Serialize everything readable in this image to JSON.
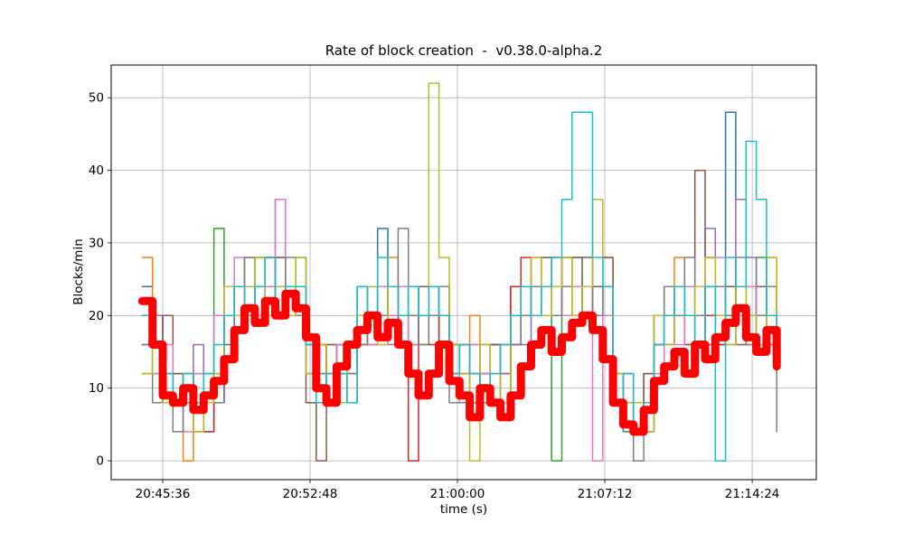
{
  "chart_data": {
    "type": "line",
    "title": "Rate of block creation  -  v0.38.0-alpha.2",
    "xlabel": "time (s)",
    "ylabel": "Blocks/min",
    "grid": true,
    "grid_color": "#b0b0b0",
    "axis_color": "#000000",
    "background_color": "#ffffff",
    "ylim": [
      -2.6,
      54.5
    ],
    "yticks": [
      0,
      10,
      20,
      30,
      40,
      50
    ],
    "xlim": [
      -151,
      1916
    ],
    "xtick_seconds": [
      0,
      432,
      864,
      1296,
      1728
    ],
    "xtick_labels": [
      "20:45:36",
      "20:52:48",
      "21:00:00",
      "21:07:12",
      "21:14:24"
    ],
    "legend": "none",
    "sample_t0": -60,
    "sample_dt": 30,
    "series": [
      {
        "name": "series-01",
        "color": "#1f77b4",
        "width": 1.5,
        "step": true,
        "values": [
          24,
          16,
          12,
          8,
          12,
          8,
          4,
          8,
          16,
          20,
          24,
          20,
          28,
          24,
          20,
          24,
          12,
          16,
          8,
          12,
          16,
          20,
          24,
          32,
          24,
          20,
          16,
          20,
          24,
          20,
          16,
          12,
          8,
          12,
          16,
          12,
          16,
          20,
          24,
          20,
          28,
          24,
          28,
          24,
          20,
          24,
          12,
          8,
          4,
          8,
          16,
          20,
          24,
          20,
          16,
          20,
          24,
          48,
          36,
          24,
          20,
          24,
          20
        ]
      },
      {
        "name": "series-02",
        "color": "#ff7f0e",
        "width": 1.5,
        "step": true,
        "values": [
          28,
          20,
          12,
          8,
          0,
          8,
          12,
          8,
          20,
          24,
          20,
          24,
          20,
          28,
          24,
          20,
          16,
          12,
          16,
          8,
          12,
          16,
          20,
          24,
          28,
          24,
          20,
          24,
          20,
          16,
          12,
          16,
          20,
          12,
          8,
          12,
          20,
          24,
          28,
          24,
          24,
          28,
          24,
          28,
          24,
          28,
          8,
          12,
          8,
          4,
          12,
          16,
          28,
          24,
          20,
          16,
          20,
          24,
          20,
          16,
          24,
          28,
          16
        ]
      },
      {
        "name": "series-03",
        "color": "#2ca02c",
        "width": 1.5,
        "step": true,
        "values": [
          16,
          12,
          8,
          12,
          8,
          12,
          8,
          32,
          24,
          20,
          24,
          28,
          24,
          20,
          24,
          28,
          12,
          8,
          12,
          16,
          12,
          24,
          20,
          24,
          20,
          24,
          20,
          16,
          20,
          24,
          12,
          8,
          12,
          16,
          12,
          16,
          24,
          20,
          24,
          28,
          0,
          20,
          24,
          20,
          24,
          20,
          8,
          4,
          8,
          12,
          20,
          24,
          20,
          16,
          20,
          24,
          16,
          20,
          24,
          20,
          28,
          24,
          20
        ]
      },
      {
        "name": "series-04",
        "color": "#d62728",
        "width": 1.5,
        "step": true,
        "values": [
          20,
          16,
          8,
          8,
          12,
          8,
          4,
          8,
          20,
          24,
          20,
          24,
          28,
          20,
          24,
          20,
          12,
          16,
          12,
          8,
          16,
          20,
          16,
          20,
          24,
          20,
          0,
          20,
          16,
          20,
          12,
          16,
          12,
          8,
          16,
          12,
          24,
          28,
          20,
          24,
          20,
          28,
          24,
          24,
          20,
          24,
          12,
          8,
          8,
          4,
          16,
          20,
          24,
          20,
          24,
          20,
          16,
          24,
          20,
          24,
          20,
          16,
          24
        ]
      },
      {
        "name": "series-05",
        "color": "#9467bd",
        "width": 1.5,
        "step": true,
        "values": [
          16,
          20,
          12,
          8,
          12,
          16,
          12,
          8,
          24,
          20,
          28,
          24,
          20,
          36,
          24,
          20,
          16,
          12,
          8,
          16,
          12,
          20,
          24,
          20,
          16,
          24,
          20,
          24,
          24,
          20,
          16,
          12,
          16,
          12,
          8,
          12,
          20,
          16,
          24,
          20,
          24,
          24,
          20,
          28,
          24,
          20,
          8,
          12,
          4,
          8,
          20,
          16,
          20,
          24,
          20,
          32,
          24,
          20,
          36,
          28,
          20,
          24,
          16
        ]
      },
      {
        "name": "series-06",
        "color": "#8c564b",
        "width": 1.5,
        "step": true,
        "values": [
          12,
          16,
          20,
          12,
          8,
          4,
          8,
          12,
          20,
          24,
          20,
          20,
          24,
          28,
          20,
          24,
          8,
          0,
          16,
          12,
          8,
          16,
          20,
          24,
          20,
          16,
          20,
          24,
          20,
          16,
          16,
          12,
          8,
          12,
          16,
          8,
          16,
          24,
          20,
          28,
          20,
          24,
          28,
          20,
          24,
          28,
          12,
          8,
          4,
          12,
          16,
          20,
          24,
          16,
          40,
          28,
          20,
          24,
          16,
          20,
          24,
          20,
          12
        ]
      },
      {
        "name": "series-07",
        "color": "#e377c2",
        "width": 1.5,
        "step": true,
        "values": [
          20,
          12,
          16,
          8,
          4,
          12,
          8,
          20,
          24,
          28,
          24,
          20,
          24,
          36,
          20,
          24,
          12,
          8,
          12,
          16,
          8,
          20,
          16,
          24,
          20,
          24,
          16,
          20,
          24,
          20,
          12,
          8,
          16,
          12,
          8,
          16,
          20,
          24,
          20,
          24,
          28,
          20,
          24,
          24,
          0,
          20,
          8,
          12,
          8,
          4,
          12,
          20,
          16,
          24,
          20,
          24,
          28,
          16,
          20,
          24,
          16,
          20,
          24
        ]
      },
      {
        "name": "series-08",
        "color": "#7f7f7f",
        "width": 1.5,
        "step": true,
        "values": [
          16,
          8,
          12,
          4,
          8,
          8,
          12,
          8,
          20,
          24,
          28,
          24,
          20,
          24,
          28,
          20,
          16,
          12,
          8,
          8,
          12,
          16,
          24,
          20,
          24,
          32,
          20,
          16,
          20,
          24,
          8,
          8,
          8,
          8,
          8,
          8,
          16,
          20,
          24,
          28,
          20,
          24,
          20,
          28,
          20,
          24,
          8,
          4,
          0,
          8,
          16,
          24,
          20,
          28,
          20,
          16,
          24,
          20,
          28,
          16,
          20,
          24,
          4
        ]
      },
      {
        "name": "series-09",
        "color": "#bcbd22",
        "width": 1.5,
        "step": true,
        "values": [
          12,
          16,
          8,
          8,
          12,
          4,
          8,
          12,
          24,
          20,
          24,
          28,
          20,
          24,
          20,
          28,
          12,
          16,
          12,
          8,
          16,
          20,
          24,
          16,
          24,
          20,
          24,
          20,
          52,
          28,
          16,
          12,
          0,
          16,
          12,
          8,
          20,
          24,
          28,
          20,
          24,
          28,
          20,
          24,
          36,
          24,
          12,
          8,
          8,
          4,
          20,
          16,
          24,
          20,
          24,
          28,
          20,
          16,
          24,
          20,
          16,
          28,
          20
        ]
      },
      {
        "name": "series-10",
        "color": "#17becf",
        "width": 1.5,
        "step": true,
        "values": [
          20,
          16,
          12,
          8,
          12,
          8,
          12,
          16,
          20,
          24,
          20,
          24,
          28,
          20,
          24,
          24,
          16,
          8,
          12,
          12,
          8,
          24,
          20,
          28,
          24,
          20,
          24,
          20,
          24,
          20,
          12,
          16,
          12,
          8,
          12,
          16,
          20,
          24,
          20,
          24,
          28,
          36,
          48,
          48,
          28,
          24,
          8,
          12,
          4,
          8,
          16,
          20,
          24,
          20,
          16,
          24,
          0,
          28,
          24,
          44,
          36,
          20,
          16
        ]
      },
      {
        "name": "overlay-mean",
        "color": "#ff0000",
        "width": 9,
        "step": true,
        "values": [
          22,
          16,
          9,
          8,
          10,
          7,
          9,
          11,
          14,
          18,
          21,
          19,
          22,
          20,
          23,
          21,
          17,
          10,
          8,
          13,
          16,
          18,
          20,
          17,
          19,
          16,
          12,
          9,
          12,
          16,
          11,
          9,
          6,
          10,
          8,
          6,
          9,
          13,
          16,
          18,
          15,
          17,
          19,
          20,
          18,
          14,
          8,
          5,
          4,
          7,
          11,
          13,
          15,
          12,
          16,
          14,
          17,
          19,
          21,
          17,
          15,
          18,
          13
        ]
      }
    ]
  }
}
